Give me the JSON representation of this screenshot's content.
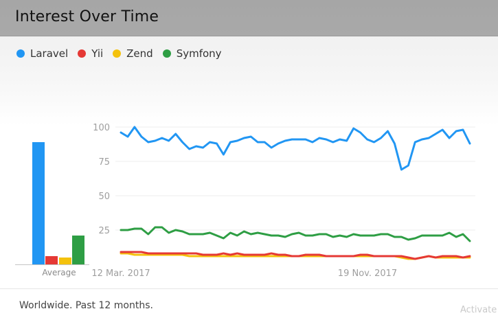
{
  "header": {
    "title": "Interest Over Time"
  },
  "footer": {
    "text": "Worldwide. Past 12 months."
  },
  "watermark": {
    "text": "Activate"
  },
  "chart_data": {
    "type": "line",
    "title": "Interest Over Time",
    "subtitle": "Worldwide. Past 12 months.",
    "ylim": [
      0,
      100
    ],
    "yticks": [
      100,
      75,
      50,
      25
    ],
    "x_tick_labels": [
      "12 Mar. 2017",
      "19 Nov. 2017"
    ],
    "grid": true,
    "legend_position": "top-left",
    "series": [
      {
        "name": "Laravel",
        "color": "#2196f3",
        "values": [
          96,
          93,
          100,
          93,
          89,
          90,
          92,
          90,
          95,
          89,
          84,
          86,
          85,
          89,
          88,
          80,
          89,
          90,
          92,
          93,
          89,
          89,
          85,
          88,
          90,
          91,
          91,
          91,
          89,
          92,
          91,
          89,
          91,
          90,
          99,
          96,
          91,
          89,
          92,
          97,
          88,
          69,
          72,
          89,
          91,
          92,
          95,
          98,
          92,
          97,
          98,
          88
        ]
      },
      {
        "name": "Yii",
        "color": "#e53935",
        "values": [
          9,
          9,
          9,
          9,
          8,
          8,
          8,
          8,
          8,
          8,
          8,
          8,
          7,
          7,
          7,
          8,
          7,
          8,
          7,
          7,
          7,
          7,
          8,
          7,
          7,
          6,
          6,
          7,
          7,
          7,
          6,
          6,
          6,
          6,
          6,
          7,
          7,
          6,
          6,
          6,
          6,
          6,
          5,
          4,
          5,
          6,
          5,
          6,
          6,
          6,
          5,
          6
        ]
      },
      {
        "name": "Zend",
        "color": "#f4c20d",
        "values": [
          8,
          8,
          7,
          7,
          7,
          7,
          7,
          7,
          7,
          7,
          6,
          6,
          6,
          6,
          6,
          6,
          6,
          6,
          6,
          6,
          6,
          6,
          6,
          6,
          6,
          6,
          6,
          6,
          6,
          6,
          6,
          6,
          6,
          6,
          6,
          6,
          6,
          6,
          6,
          6,
          6,
          5,
          4,
          4,
          5,
          6,
          5,
          5,
          5,
          5,
          5,
          5
        ]
      },
      {
        "name": "Symfony",
        "color": "#2e9e44",
        "values": [
          25,
          25,
          26,
          26,
          22,
          27,
          27,
          23,
          25,
          24,
          22,
          22,
          22,
          23,
          21,
          19,
          23,
          21,
          24,
          22,
          23,
          22,
          21,
          21,
          20,
          22,
          23,
          21,
          21,
          22,
          22,
          20,
          21,
          20,
          22,
          21,
          21,
          21,
          22,
          22,
          20,
          20,
          18,
          19,
          21,
          21,
          21,
          21,
          23,
          20,
          22,
          17
        ]
      }
    ],
    "average": {
      "label": "Average",
      "values": [
        {
          "name": "Laravel",
          "value": 89
        },
        {
          "name": "Yii",
          "value": 6
        },
        {
          "name": "Zend",
          "value": 5
        },
        {
          "name": "Symfony",
          "value": 21
        }
      ]
    }
  }
}
